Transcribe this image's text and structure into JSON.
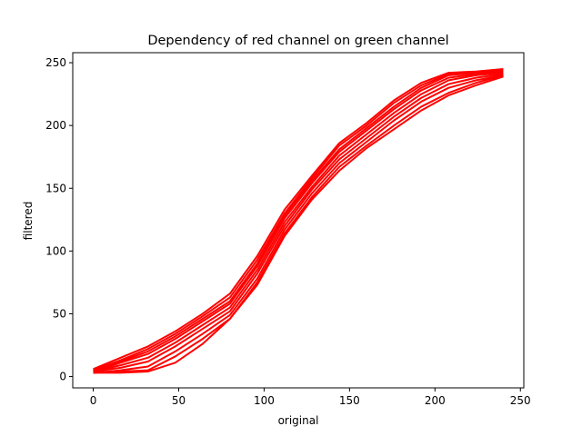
{
  "chart_data": {
    "type": "line",
    "title": "Dependency of red channel on green channel",
    "xlabel": "original",
    "ylabel": "filtered",
    "xlim": [
      -12,
      252
    ],
    "ylim": [
      -9,
      258
    ],
    "xticks": [
      0,
      50,
      100,
      150,
      200,
      250
    ],
    "yticks": [
      0,
      50,
      100,
      150,
      200,
      250
    ],
    "grid": false,
    "line_color": "#ff0000",
    "x": [
      0,
      16,
      32,
      48,
      64,
      80,
      96,
      112,
      128,
      144,
      160,
      176,
      192,
      208,
      224,
      240
    ],
    "series": [
      {
        "values": [
          6,
          15,
          24,
          36,
          50,
          66,
          96,
          133,
          160,
          186,
          202,
          220,
          234,
          242,
          243,
          245
        ]
      },
      {
        "values": [
          5,
          13,
          22,
          34,
          48,
          63,
          93,
          130,
          158,
          184,
          200,
          218,
          232,
          241,
          242,
          244
        ]
      },
      {
        "values": [
          5,
          12,
          20,
          32,
          46,
          60,
          90,
          128,
          156,
          181,
          198,
          215,
          230,
          240,
          242,
          243
        ]
      },
      {
        "values": [
          4,
          11,
          18,
          30,
          44,
          58,
          88,
          126,
          154,
          179,
          196,
          213,
          228,
          238,
          241,
          242
        ]
      },
      {
        "values": [
          4,
          9,
          15,
          27,
          41,
          55,
          85,
          123,
          151,
          176,
          193,
          210,
          225,
          236,
          240,
          242
        ]
      },
      {
        "values": [
          4,
          7,
          12,
          24,
          38,
          52,
          82,
          120,
          149,
          173,
          190,
          207,
          222,
          233,
          238,
          241
        ]
      },
      {
        "values": [
          3,
          5,
          8,
          20,
          34,
          49,
          78,
          117,
          146,
          170,
          187,
          204,
          219,
          230,
          236,
          240
        ]
      },
      {
        "values": [
          3,
          4,
          5,
          16,
          30,
          46,
          75,
          114,
          143,
          167,
          184,
          200,
          215,
          226,
          234,
          240
        ]
      },
      {
        "values": [
          3,
          3,
          4,
          11,
          26,
          46,
          73,
          112,
          141,
          164,
          182,
          197,
          212,
          224,
          232,
          239
        ]
      }
    ]
  }
}
